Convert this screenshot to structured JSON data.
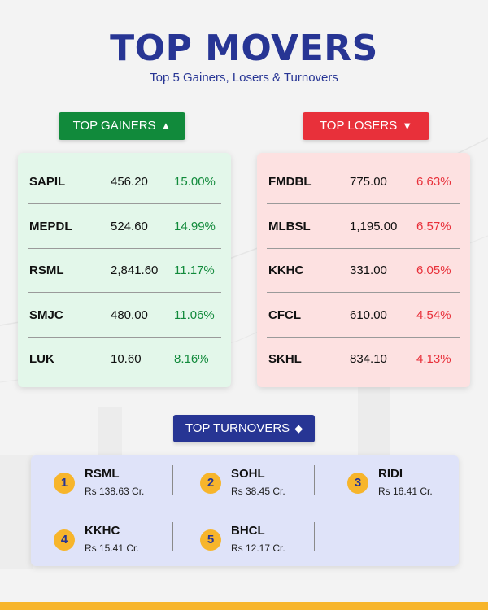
{
  "header": {
    "title": "TOP MOVERS",
    "subtitle": "Top 5 Gainers, Losers & Turnovers"
  },
  "gainers": {
    "label": "TOP GAINERS",
    "icon": "triangle-up-icon",
    "color": "#118a3b",
    "rows": [
      {
        "symbol": "SAPIL",
        "price": "456.20",
        "change": "15.00%"
      },
      {
        "symbol": "MEPDL",
        "price": "524.60",
        "change": "14.99%"
      },
      {
        "symbol": "RSML",
        "price": "2,841.60",
        "change": "11.17%"
      },
      {
        "symbol": "SMJC",
        "price": "480.00",
        "change": "11.06%"
      },
      {
        "symbol": "LUK",
        "price": "10.60",
        "change": "8.16%"
      }
    ]
  },
  "losers": {
    "label": "TOP LOSERS",
    "icon": "triangle-down-icon",
    "color": "#e8303a",
    "rows": [
      {
        "symbol": "FMDBL",
        "price": "775.00",
        "change": "6.63%"
      },
      {
        "symbol": "MLBSL",
        "price": "1,195.00",
        "change": "6.57%"
      },
      {
        "symbol": "KKHC",
        "price": "331.00",
        "change": "6.05%"
      },
      {
        "symbol": "CFCL",
        "price": "610.00",
        "change": "4.54%"
      },
      {
        "symbol": "SKHL",
        "price": "834.10",
        "change": "4.13%"
      }
    ]
  },
  "turnovers": {
    "label": "TOP TURNOVERS",
    "icon": "diamond-icon",
    "color": "#273594",
    "items": [
      {
        "rank": "1",
        "symbol": "RSML",
        "value": "Rs 138.63 Cr."
      },
      {
        "rank": "2",
        "symbol": "SOHL",
        "value": "Rs 38.45 Cr."
      },
      {
        "rank": "3",
        "symbol": "RIDI",
        "value": "Rs 16.41 Cr."
      },
      {
        "rank": "4",
        "symbol": "KKHC",
        "value": "Rs 15.41 Cr."
      },
      {
        "rank": "5",
        "symbol": "BHCL",
        "value": "Rs 12.17 Cr."
      }
    ]
  },
  "accent_color": "#f7b52b"
}
